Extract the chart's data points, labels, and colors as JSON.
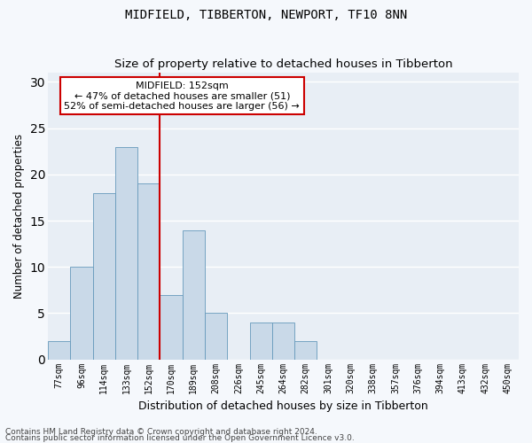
{
  "title": "MIDFIELD, TIBBERTON, NEWPORT, TF10 8NN",
  "subtitle": "Size of property relative to detached houses in Tibberton",
  "xlabel": "Distribution of detached houses by size in Tibberton",
  "ylabel": "Number of detached properties",
  "categories": [
    "77sqm",
    "96sqm",
    "114sqm",
    "133sqm",
    "152sqm",
    "170sqm",
    "189sqm",
    "208sqm",
    "226sqm",
    "245sqm",
    "264sqm",
    "282sqm",
    "301sqm",
    "320sqm",
    "338sqm",
    "357sqm",
    "376sqm",
    "394sqm",
    "413sqm",
    "432sqm",
    "450sqm"
  ],
  "values": [
    2,
    10,
    18,
    23,
    19,
    7,
    14,
    5,
    0,
    4,
    4,
    2,
    0,
    0,
    0,
    0,
    0,
    0,
    0,
    0,
    0
  ],
  "bar_color": "#c9d9e8",
  "bar_edge_color": "#6699bb",
  "vline_x": 4.5,
  "vline_color": "#cc0000",
  "annotation_text": "MIDFIELD: 152sqm\n← 47% of detached houses are smaller (51)\n52% of semi-detached houses are larger (56) →",
  "annotation_box_color": "#ffffff",
  "annotation_box_edge_color": "#cc0000",
  "ylim": [
    0,
    31
  ],
  "yticks": [
    0,
    5,
    10,
    15,
    20,
    25,
    30
  ],
  "footer_line1": "Contains HM Land Registry data © Crown copyright and database right 2024.",
  "footer_line2": "Contains public sector information licensed under the Open Government Licence v3.0.",
  "plot_bg_color": "#e8eef5",
  "fig_bg_color": "#f5f8fc",
  "grid_color": "#ffffff",
  "title_fontsize": 10,
  "subtitle_fontsize": 9.5,
  "xlabel_fontsize": 9,
  "ylabel_fontsize": 8.5,
  "tick_fontsize": 7,
  "annotation_fontsize": 8,
  "footer_fontsize": 6.5
}
